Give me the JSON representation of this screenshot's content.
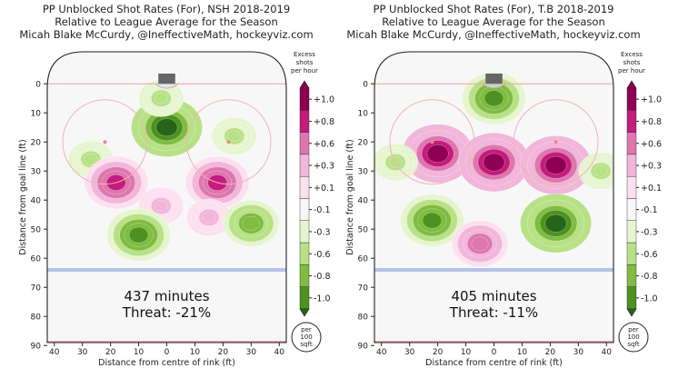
{
  "chart_data": [
    {
      "type": "heatmap",
      "title_lines": [
        "PP Unblocked Shot Rates (For), NSH 2018-2019",
        "Relative to League Average for the Season",
        "Micah Blake McCurdy, @IneffectiveMath, hockeyviz.com"
      ],
      "xlabel": "Distance from centre of rink (ft)",
      "ylabel": "Distance from goal line (ft)",
      "xlim": [
        -42.5,
        42.5
      ],
      "ylim": [
        -11,
        89
      ],
      "xticks": [
        "40",
        "30",
        "20",
        "10",
        "0",
        "10",
        "20",
        "30",
        "40"
      ],
      "yticks": [
        "0",
        "10",
        "20",
        "30",
        "40",
        "50",
        "60",
        "70",
        "80",
        "90"
      ],
      "minutes_label": "437 minutes",
      "threat_label": "Threat: -21%",
      "blobs": [
        {
          "x": 0,
          "y": 15,
          "value": -1.0
        },
        {
          "x": -2,
          "y": 5,
          "value": -0.3
        },
        {
          "x": -27,
          "y": 26,
          "value": -0.3
        },
        {
          "x": 24,
          "y": 18,
          "value": -0.3
        },
        {
          "x": -18,
          "y": 34,
          "value": 0.8
        },
        {
          "x": 18,
          "y": 34,
          "value": 0.8
        },
        {
          "x": -2,
          "y": 42,
          "value": 0.3
        },
        {
          "x": 15,
          "y": 46,
          "value": 0.3
        },
        {
          "x": -10,
          "y": 52,
          "value": -0.8
        },
        {
          "x": 30,
          "y": 48,
          "value": -0.6
        }
      ]
    },
    {
      "type": "heatmap",
      "title_lines": [
        "PP Unblocked Shot Rates (For), T.B 2018-2019",
        "Relative to League Average for the Season",
        "Micah Blake McCurdy, @IneffectiveMath, hockeyviz.com"
      ],
      "xlabel": "Distance from centre of rink (ft)",
      "ylabel": "Distance from goal line (ft)",
      "xlim": [
        -42.5,
        42.5
      ],
      "ylim": [
        -11,
        89
      ],
      "xticks": [
        "40",
        "30",
        "20",
        "10",
        "0",
        "10",
        "20",
        "30",
        "40"
      ],
      "yticks": [
        "0",
        "10",
        "20",
        "30",
        "40",
        "50",
        "60",
        "70",
        "80",
        "90"
      ],
      "minutes_label": "405 minutes",
      "threat_label": "Threat: -11%",
      "blobs": [
        {
          "x": 0,
          "y": 5,
          "value": -0.8
        },
        {
          "x": -20,
          "y": 24,
          "value": 1.0
        },
        {
          "x": 0,
          "y": 27,
          "value": 1.0
        },
        {
          "x": 22,
          "y": 28,
          "value": 1.0
        },
        {
          "x": -35,
          "y": 27,
          "value": -0.3
        },
        {
          "x": 38,
          "y": 30,
          "value": -0.3
        },
        {
          "x": -22,
          "y": 47,
          "value": -0.8
        },
        {
          "x": 22,
          "y": 48,
          "value": -1.0
        },
        {
          "x": -5,
          "y": 55,
          "value": 0.6
        }
      ]
    }
  ],
  "colorbar": {
    "title_lines": [
      "Excess",
      "shots",
      "per hour"
    ],
    "levels": [
      {
        "label": "+1.0",
        "color": "#8e0152"
      },
      {
        "label": "+0.8",
        "color": "#c51b7d"
      },
      {
        "label": "+0.6",
        "color": "#de77ae"
      },
      {
        "label": "+0.3",
        "color": "#f1b6da"
      },
      {
        "label": "+0.1",
        "color": "#fde0ef"
      },
      {
        "label": "-0.1",
        "color": "#f7f7f7"
      },
      {
        "label": "-0.3",
        "color": "#e6f5d0"
      },
      {
        "label": "-0.6",
        "color": "#b8e186"
      },
      {
        "label": "-0.8",
        "color": "#7fbc41"
      },
      {
        "label": "-1.0",
        "color": "#4d9221"
      }
    ],
    "darkest_neg": "#276419",
    "unit_lines": [
      "per",
      "100",
      "sqft"
    ]
  }
}
